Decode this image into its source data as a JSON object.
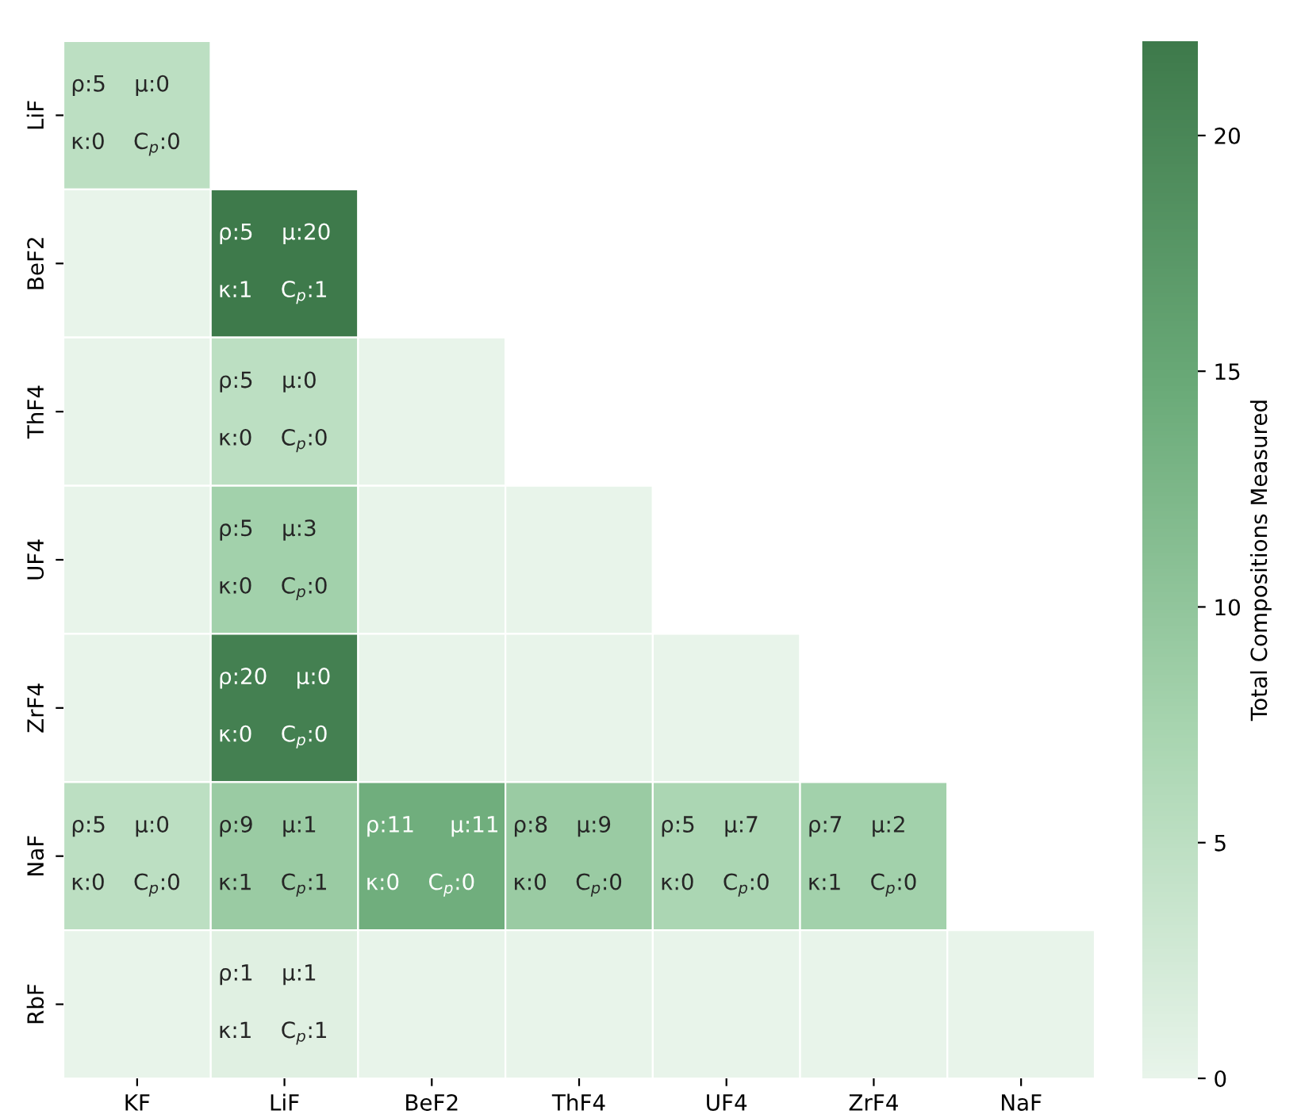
{
  "chart_data": {
    "type": "heatmap",
    "categories": [
      "KF",
      "LiF",
      "BeF2",
      "ThF4",
      "UF4",
      "ZrF4",
      "NaF"
    ],
    "y_categories": [
      "LiF",
      "BeF2",
      "ThF4",
      "UF4",
      "ZrF4",
      "NaF",
      "RbF"
    ],
    "cells": [
      [
        5,
        null,
        null,
        null,
        null,
        null,
        null
      ],
      [
        0,
        22,
        null,
        null,
        null,
        null,
        null
      ],
      [
        0,
        5,
        0,
        null,
        null,
        null,
        null
      ],
      [
        0,
        8,
        0,
        0,
        null,
        null,
        null
      ],
      [
        0,
        21,
        0,
        0,
        0,
        null,
        null
      ],
      [
        5,
        9,
        14,
        9,
        7,
        8,
        null
      ],
      [
        0,
        1,
        0,
        0,
        0,
        0,
        0
      ]
    ],
    "cell_labels": [
      [
        "ρ:5    μ:0\n\nκ:0    C$_{p}$:0",
        null,
        null,
        null,
        null,
        null,
        null
      ],
      [
        null,
        "ρ:5    μ:20\n\nκ:1    C$_{p}$:1",
        null,
        null,
        null,
        null,
        null
      ],
      [
        null,
        "ρ:5    μ:0\n\nκ:0    C$_{p}$:0",
        null,
        null,
        null,
        null,
        null
      ],
      [
        null,
        "ρ:5    μ:3\n\nκ:0    C$_{p}$:0",
        null,
        null,
        null,
        null,
        null
      ],
      [
        null,
        "ρ:20    μ:0\n\nκ:0    C$_{p}$:0",
        null,
        null,
        null,
        null,
        null
      ],
      [
        "ρ:5    μ:0\n\nκ:0    C$_{p}$:0",
        "ρ:9    μ:1\n\nκ:1    C$_{p}$:1",
        "ρ:11     μ:11\n\nκ:0    C$_{p}$:0",
        "ρ:8    μ:9\n\nκ:0    C$_{p}$:0",
        "ρ:5    μ:7\n\nκ:0    C$_{p}$:0",
        "ρ:7    μ:2\n\nκ:1    C$_{p}$:0",
        null
      ],
      [
        null,
        "ρ:1    μ:1\n\nκ:1    C$_{p}$:1",
        null,
        null,
        null,
        null,
        null
      ]
    ],
    "clim": [
      0,
      22
    ],
    "cticks": [
      0,
      5,
      10,
      15,
      20
    ],
    "clabel": "Total Compositions Measured",
    "colors": [
      "#e8f4ea",
      "#a8d5b0",
      "#6aaa78",
      "#3e7a4b"
    ]
  }
}
